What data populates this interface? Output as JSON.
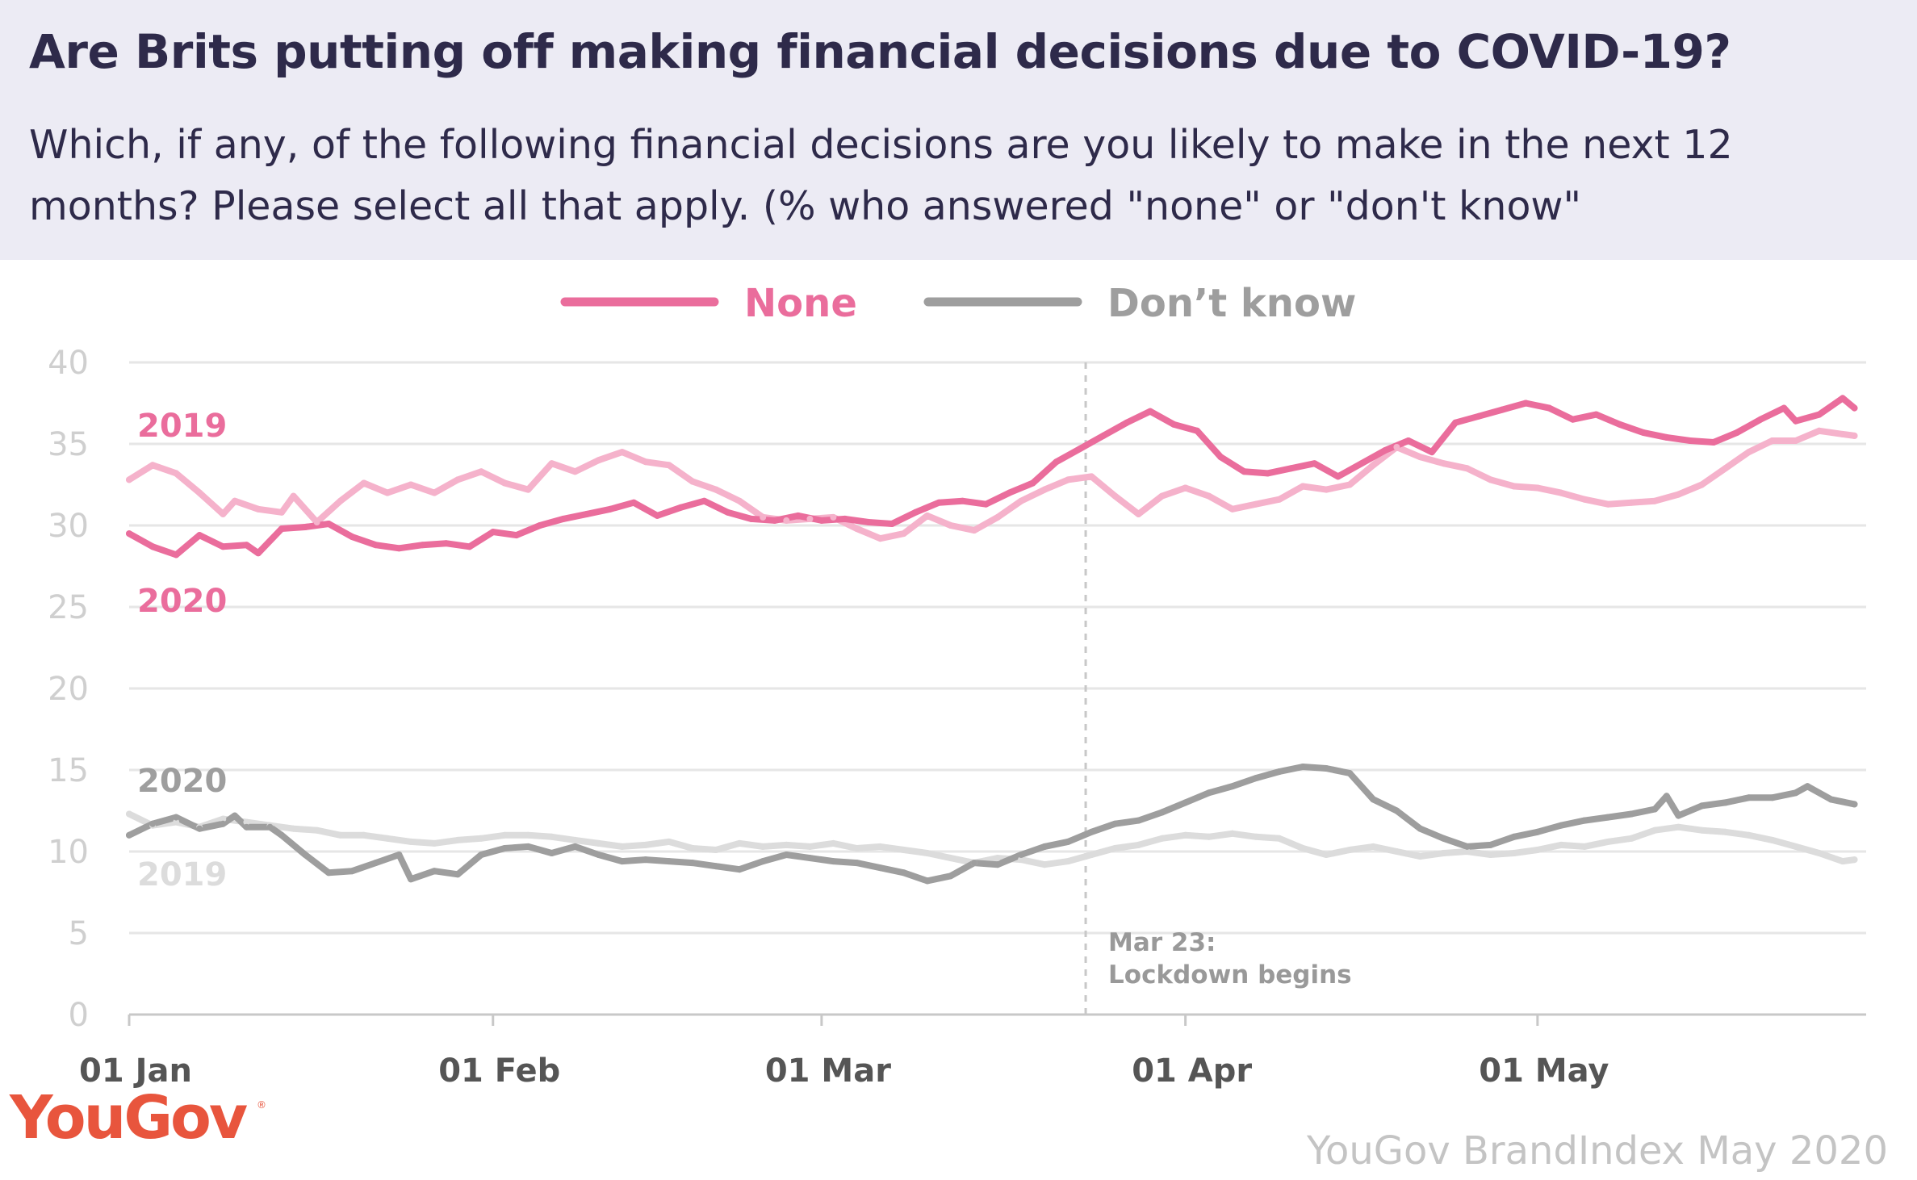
{
  "header": {
    "title": "Are Brits putting off making financial decisions due to COVID-19?",
    "subtitle": "Which, if any, of the following financial decisions are you likely to make in the next 12 months? Please select all that apply. (% who answered \"none\" or \"don't know\""
  },
  "footer": {
    "logo": "YouGov",
    "source": "YouGov BrandIndex May 2020"
  },
  "colors": {
    "none_2020": "#ea6d9c",
    "none_2019": "#f5b2cb",
    "dk_2020": "#9e9e9e",
    "dk_2019": "#dcdcdc",
    "grid": "#e6e6e6",
    "axis": "#c8c8c8",
    "tick_label": "#cfcfcf",
    "x_label": "#555555",
    "annotation": "#999999"
  },
  "chart_data": {
    "type": "line",
    "x_start": "01 Jan",
    "x_days": 148,
    "xticks": [
      {
        "day": 0,
        "label": "01 Jan"
      },
      {
        "day": 31,
        "label": "01 Feb"
      },
      {
        "day": 59,
        "label": "01 Mar"
      },
      {
        "day": 90,
        "label": "01 Apr"
      },
      {
        "day": 120,
        "label": "01 May"
      }
    ],
    "ylim": [
      0,
      40
    ],
    "yticks": [
      0,
      5,
      10,
      15,
      20,
      25,
      30,
      35,
      40
    ],
    "grid": true,
    "legend": [
      {
        "label": "None",
        "color": "#ea6d9c"
      },
      {
        "label": "Don’t know",
        "color": "#9e9e9e"
      }
    ],
    "series_labels": {
      "none_2019": "2019",
      "none_2020": "2020",
      "dk_2020": "2020",
      "dk_2019": "2019"
    },
    "annotation": {
      "day": 81.5,
      "line1": "Mar 23:",
      "line2": "Lockdown begins"
    },
    "series": [
      {
        "key": "none_2019",
        "legend": "None",
        "year": "2019",
        "color": "#f5b2cb",
        "points": [
          [
            0,
            32.8
          ],
          [
            2,
            33.7
          ],
          [
            4,
            33.2
          ],
          [
            6,
            32.0
          ],
          [
            8,
            30.7
          ],
          [
            9,
            31.5
          ],
          [
            11,
            31.0
          ],
          [
            13,
            30.8
          ],
          [
            14,
            31.8
          ],
          [
            16,
            30.2
          ],
          [
            18,
            31.5
          ],
          [
            20,
            32.6
          ],
          [
            22,
            32.0
          ],
          [
            24,
            32.5
          ],
          [
            26,
            32.0
          ],
          [
            28,
            32.8
          ],
          [
            30,
            33.3
          ],
          [
            32,
            32.6
          ],
          [
            34,
            32.2
          ],
          [
            36,
            33.8
          ],
          [
            38,
            33.3
          ],
          [
            40,
            34.0
          ],
          [
            42,
            34.5
          ],
          [
            44,
            33.9
          ],
          [
            46,
            33.7
          ],
          [
            48,
            32.7
          ],
          [
            50,
            32.2
          ],
          [
            52,
            31.5
          ],
          [
            54,
            30.5
          ],
          [
            56,
            30.3
          ],
          [
            58,
            30.4
          ],
          [
            60,
            30.5
          ],
          [
            62,
            29.8
          ],
          [
            64,
            29.2
          ],
          [
            66,
            29.5
          ],
          [
            68,
            30.6
          ],
          [
            70,
            30.0
          ],
          [
            72,
            29.7
          ],
          [
            74,
            30.5
          ],
          [
            76,
            31.5
          ],
          [
            78,
            32.2
          ],
          [
            80,
            32.8
          ],
          [
            82,
            33.0
          ],
          [
            84,
            31.8
          ],
          [
            86,
            30.7
          ],
          [
            88,
            31.8
          ],
          [
            90,
            32.3
          ],
          [
            92,
            31.8
          ],
          [
            94,
            31.0
          ],
          [
            96,
            31.3
          ],
          [
            98,
            31.6
          ],
          [
            100,
            32.4
          ],
          [
            102,
            32.2
          ],
          [
            104,
            32.5
          ],
          [
            106,
            33.7
          ],
          [
            108,
            34.8
          ],
          [
            110,
            34.2
          ],
          [
            112,
            33.8
          ],
          [
            114,
            33.5
          ],
          [
            116,
            32.8
          ],
          [
            118,
            32.4
          ],
          [
            120,
            32.3
          ],
          [
            122,
            32.0
          ],
          [
            124,
            31.6
          ],
          [
            126,
            31.3
          ],
          [
            128,
            31.4
          ],
          [
            130,
            31.5
          ],
          [
            132,
            31.9
          ],
          [
            134,
            32.5
          ],
          [
            136,
            33.5
          ],
          [
            138,
            34.5
          ],
          [
            140,
            35.2
          ],
          [
            142,
            35.2
          ],
          [
            144,
            35.8
          ],
          [
            146,
            35.6
          ],
          [
            147,
            35.5
          ]
        ]
      },
      {
        "key": "none_2020",
        "legend": "None",
        "year": "2020",
        "color": "#ea6d9c",
        "points": [
          [
            0,
            29.5
          ],
          [
            2,
            28.7
          ],
          [
            4,
            28.2
          ],
          [
            6,
            29.4
          ],
          [
            8,
            28.7
          ],
          [
            10,
            28.8
          ],
          [
            11,
            28.3
          ],
          [
            13,
            29.8
          ],
          [
            15,
            29.9
          ],
          [
            17,
            30.1
          ],
          [
            19,
            29.3
          ],
          [
            21,
            28.8
          ],
          [
            23,
            28.6
          ],
          [
            25,
            28.8
          ],
          [
            27,
            28.9
          ],
          [
            29,
            28.7
          ],
          [
            31,
            29.6
          ],
          [
            33,
            29.4
          ],
          [
            35,
            30.0
          ],
          [
            37,
            30.4
          ],
          [
            39,
            30.7
          ],
          [
            41,
            31.0
          ],
          [
            43,
            31.4
          ],
          [
            45,
            30.6
          ],
          [
            47,
            31.1
          ],
          [
            49,
            31.5
          ],
          [
            51,
            30.8
          ],
          [
            53,
            30.4
          ],
          [
            55,
            30.3
          ],
          [
            57,
            30.6
          ],
          [
            59,
            30.3
          ],
          [
            61,
            30.4
          ],
          [
            63,
            30.2
          ],
          [
            65,
            30.1
          ],
          [
            67,
            30.8
          ],
          [
            69,
            31.4
          ],
          [
            71,
            31.5
          ],
          [
            73,
            31.3
          ],
          [
            75,
            32.0
          ],
          [
            77,
            32.6
          ],
          [
            79,
            33.9
          ],
          [
            81,
            34.7
          ],
          [
            83,
            35.5
          ],
          [
            85,
            36.3
          ],
          [
            87,
            37.0
          ],
          [
            89,
            36.2
          ],
          [
            91,
            35.8
          ],
          [
            93,
            34.2
          ],
          [
            95,
            33.3
          ],
          [
            97,
            33.2
          ],
          [
            99,
            33.5
          ],
          [
            101,
            33.8
          ],
          [
            103,
            33.0
          ],
          [
            105,
            33.8
          ],
          [
            107,
            34.6
          ],
          [
            109,
            35.2
          ],
          [
            111,
            34.5
          ],
          [
            113,
            36.3
          ],
          [
            115,
            36.7
          ],
          [
            117,
            37.1
          ],
          [
            119,
            37.5
          ],
          [
            121,
            37.2
          ],
          [
            123,
            36.5
          ],
          [
            125,
            36.8
          ],
          [
            127,
            36.2
          ],
          [
            129,
            35.7
          ],
          [
            131,
            35.4
          ],
          [
            133,
            35.2
          ],
          [
            135,
            35.1
          ],
          [
            137,
            35.7
          ],
          [
            139,
            36.5
          ],
          [
            141,
            37.2
          ],
          [
            142,
            36.4
          ],
          [
            144,
            36.8
          ],
          [
            146,
            37.8
          ],
          [
            147,
            37.2
          ]
        ]
      },
      {
        "key": "dk_2020",
        "legend": "Don’t know",
        "year": "2020",
        "color": "#9e9e9e",
        "points": [
          [
            0,
            11.0
          ],
          [
            2,
            11.7
          ],
          [
            4,
            12.1
          ],
          [
            6,
            11.4
          ],
          [
            8,
            11.7
          ],
          [
            9,
            12.2
          ],
          [
            10,
            11.5
          ],
          [
            12,
            11.5
          ],
          [
            13,
            11.0
          ],
          [
            15,
            9.8
          ],
          [
            17,
            8.7
          ],
          [
            19,
            8.8
          ],
          [
            21,
            9.3
          ],
          [
            23,
            9.8
          ],
          [
            24,
            8.3
          ],
          [
            26,
            8.8
          ],
          [
            28,
            8.6
          ],
          [
            30,
            9.8
          ],
          [
            32,
            10.2
          ],
          [
            34,
            10.3
          ],
          [
            36,
            9.9
          ],
          [
            38,
            10.3
          ],
          [
            40,
            9.8
          ],
          [
            42,
            9.4
          ],
          [
            44,
            9.5
          ],
          [
            46,
            9.4
          ],
          [
            48,
            9.3
          ],
          [
            50,
            9.1
          ],
          [
            52,
            8.9
          ],
          [
            54,
            9.4
          ],
          [
            56,
            9.8
          ],
          [
            58,
            9.6
          ],
          [
            60,
            9.4
          ],
          [
            62,
            9.3
          ],
          [
            64,
            9.0
          ],
          [
            66,
            8.7
          ],
          [
            68,
            8.2
          ],
          [
            70,
            8.5
          ],
          [
            72,
            9.3
          ],
          [
            74,
            9.2
          ],
          [
            76,
            9.8
          ],
          [
            78,
            10.3
          ],
          [
            80,
            10.6
          ],
          [
            82,
            11.2
          ],
          [
            84,
            11.7
          ],
          [
            86,
            11.9
          ],
          [
            88,
            12.4
          ],
          [
            90,
            13.0
          ],
          [
            92,
            13.6
          ],
          [
            94,
            14.0
          ],
          [
            96,
            14.5
          ],
          [
            98,
            14.9
          ],
          [
            100,
            15.2
          ],
          [
            102,
            15.1
          ],
          [
            104,
            14.8
          ],
          [
            106,
            13.2
          ],
          [
            108,
            12.5
          ],
          [
            110,
            11.4
          ],
          [
            112,
            10.8
          ],
          [
            114,
            10.3
          ],
          [
            116,
            10.4
          ],
          [
            118,
            10.9
          ],
          [
            120,
            11.2
          ],
          [
            122,
            11.6
          ],
          [
            124,
            11.9
          ],
          [
            126,
            12.1
          ],
          [
            128,
            12.3
          ],
          [
            130,
            12.6
          ],
          [
            131,
            13.4
          ],
          [
            132,
            12.2
          ],
          [
            134,
            12.8
          ],
          [
            136,
            13.0
          ],
          [
            138,
            13.3
          ],
          [
            140,
            13.3
          ],
          [
            142,
            13.6
          ],
          [
            143,
            14.0
          ],
          [
            145,
            13.2
          ],
          [
            147,
            12.9
          ]
        ]
      },
      {
        "key": "dk_2019",
        "legend": "Don’t know",
        "year": "2019",
        "color": "#dcdcdc",
        "points": [
          [
            0,
            12.3
          ],
          [
            2,
            11.6
          ],
          [
            4,
            11.8
          ],
          [
            6,
            11.5
          ],
          [
            8,
            12.0
          ],
          [
            10,
            11.8
          ],
          [
            12,
            11.6
          ],
          [
            14,
            11.4
          ],
          [
            16,
            11.3
          ],
          [
            18,
            11.0
          ],
          [
            20,
            11.0
          ],
          [
            22,
            10.8
          ],
          [
            24,
            10.6
          ],
          [
            26,
            10.5
          ],
          [
            28,
            10.7
          ],
          [
            30,
            10.8
          ],
          [
            32,
            11.0
          ],
          [
            34,
            11.0
          ],
          [
            36,
            10.9
          ],
          [
            38,
            10.7
          ],
          [
            40,
            10.5
          ],
          [
            42,
            10.3
          ],
          [
            44,
            10.4
          ],
          [
            46,
            10.6
          ],
          [
            48,
            10.2
          ],
          [
            50,
            10.1
          ],
          [
            52,
            10.5
          ],
          [
            54,
            10.3
          ],
          [
            56,
            10.4
          ],
          [
            58,
            10.3
          ],
          [
            60,
            10.5
          ],
          [
            62,
            10.2
          ],
          [
            64,
            10.3
          ],
          [
            66,
            10.1
          ],
          [
            68,
            9.9
          ],
          [
            70,
            9.6
          ],
          [
            72,
            9.3
          ],
          [
            74,
            9.6
          ],
          [
            76,
            9.5
          ],
          [
            78,
            9.2
          ],
          [
            80,
            9.4
          ],
          [
            82,
            9.8
          ],
          [
            84,
            10.2
          ],
          [
            86,
            10.4
          ],
          [
            88,
            10.8
          ],
          [
            90,
            11.0
          ],
          [
            92,
            10.9
          ],
          [
            94,
            11.1
          ],
          [
            96,
            10.9
          ],
          [
            98,
            10.8
          ],
          [
            100,
            10.2
          ],
          [
            102,
            9.8
          ],
          [
            104,
            10.1
          ],
          [
            106,
            10.3
          ],
          [
            108,
            10.0
          ],
          [
            110,
            9.7
          ],
          [
            112,
            9.9
          ],
          [
            114,
            10.0
          ],
          [
            116,
            9.8
          ],
          [
            118,
            9.9
          ],
          [
            120,
            10.1
          ],
          [
            122,
            10.4
          ],
          [
            124,
            10.3
          ],
          [
            126,
            10.6
          ],
          [
            128,
            10.8
          ],
          [
            130,
            11.3
          ],
          [
            132,
            11.5
          ],
          [
            134,
            11.3
          ],
          [
            136,
            11.2
          ],
          [
            138,
            11.0
          ],
          [
            140,
            10.7
          ],
          [
            142,
            10.3
          ],
          [
            144,
            9.9
          ],
          [
            146,
            9.4
          ],
          [
            147,
            9.5
          ]
        ]
      }
    ]
  }
}
